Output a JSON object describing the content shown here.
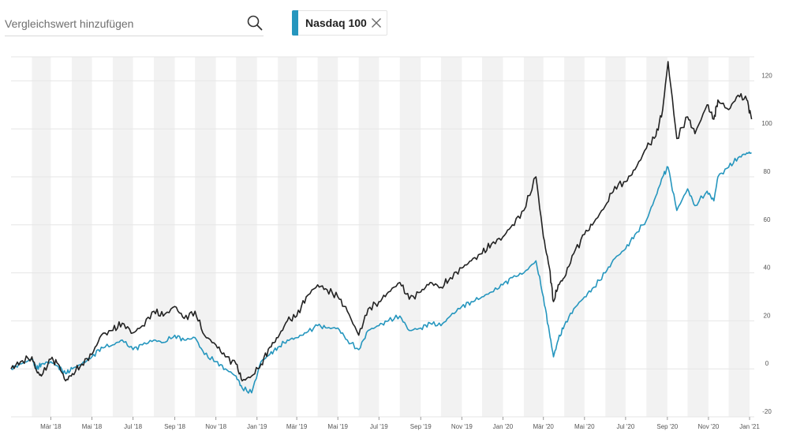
{
  "search": {
    "placeholder": "Vergleichswert hinzufügen",
    "icon": "search-icon"
  },
  "comparison_chip": {
    "label": "Nasdaq 100",
    "color": "#2596be",
    "close_icon": "close-icon"
  },
  "colors": {
    "main_series": "#222222",
    "comparison_series": "#2596be",
    "band": "#f2f2f2"
  },
  "chart_data": {
    "type": "line",
    "title": "",
    "xlabel": "",
    "ylabel": "",
    "ylim": [
      -20,
      130
    ],
    "yticks": [
      -20,
      0,
      20,
      40,
      60,
      80,
      100,
      120
    ],
    "xticks": [
      "Mär '18",
      "Mai '18",
      "Jul '18",
      "Sep '18",
      "Nov '18",
      "Jan '19",
      "Mär '19",
      "Mai '19",
      "Jul '19",
      "Sep '19",
      "Nov '19",
      "Jan '20",
      "Mär '20",
      "Mai '20",
      "Jul '20",
      "Sep '20",
      "Nov '20",
      "Jan '21"
    ],
    "grid": true,
    "alternating_month_bands": true,
    "x": [
      "2018-01-01",
      "2018-01-15",
      "2018-02-01",
      "2018-02-08",
      "2018-02-15",
      "2018-03-01",
      "2018-03-12",
      "2018-03-23",
      "2018-04-02",
      "2018-04-16",
      "2018-05-01",
      "2018-05-15",
      "2018-06-01",
      "2018-06-15",
      "2018-07-01",
      "2018-07-15",
      "2018-08-01",
      "2018-08-15",
      "2018-09-01",
      "2018-09-15",
      "2018-10-01",
      "2018-10-15",
      "2018-11-01",
      "2018-11-15",
      "2018-12-01",
      "2018-12-10",
      "2018-12-24",
      "2019-01-07",
      "2019-01-20",
      "2019-02-01",
      "2019-02-15",
      "2019-03-01",
      "2019-03-15",
      "2019-04-01",
      "2019-04-15",
      "2019-05-01",
      "2019-05-15",
      "2019-06-01",
      "2019-06-15",
      "2019-07-01",
      "2019-07-15",
      "2019-08-01",
      "2019-08-15",
      "2019-09-01",
      "2019-09-15",
      "2019-10-01",
      "2019-10-15",
      "2019-11-01",
      "2019-11-15",
      "2019-12-01",
      "2019-12-15",
      "2020-01-01",
      "2020-01-15",
      "2020-02-01",
      "2020-02-19",
      "2020-03-01",
      "2020-03-10",
      "2020-03-16",
      "2020-03-23",
      "2020-04-01",
      "2020-04-15",
      "2020-05-01",
      "2020-05-15",
      "2020-06-01",
      "2020-06-15",
      "2020-07-01",
      "2020-07-15",
      "2020-08-01",
      "2020-08-15",
      "2020-08-25",
      "2020-09-02",
      "2020-09-15",
      "2020-10-01",
      "2020-10-12",
      "2020-10-30",
      "2020-11-09",
      "2020-11-15",
      "2020-12-01",
      "2020-12-15",
      "2020-12-28",
      "2021-01-04"
    ],
    "series": [
      {
        "name": "",
        "values": [
          0,
          3,
          5,
          -1,
          -3,
          4,
          2,
          -5,
          -2,
          2,
          6,
          14,
          16,
          19,
          15,
          18,
          24,
          22,
          26,
          21,
          24,
          14,
          10,
          5,
          2,
          -5,
          -3,
          2,
          9,
          13,
          20,
          22,
          30,
          35,
          33,
          30,
          24,
          14,
          25,
          28,
          32,
          36,
          29,
          32,
          36,
          34,
          38,
          42,
          45,
          48,
          52,
          55,
          60,
          66,
          80,
          55,
          42,
          28,
          35,
          38,
          48,
          56,
          61,
          68,
          76,
          78,
          83,
          92,
          97,
          108,
          128,
          96,
          105,
          98,
          110,
          104,
          112,
          108,
          114,
          112,
          104
        ]
      },
      {
        "name": "",
        "values": [
          0,
          2,
          4,
          0,
          2,
          3,
          1,
          -2,
          0,
          2,
          5,
          9,
          10,
          12,
          8,
          10,
          12,
          11,
          14,
          12,
          13,
          6,
          3,
          0,
          -3,
          -8,
          -10,
          3,
          6,
          9,
          12,
          13,
          15,
          18,
          17,
          17,
          12,
          8,
          16,
          18,
          20,
          22,
          16,
          17,
          19,
          18,
          22,
          26,
          28,
          30,
          32,
          35,
          38,
          40,
          45,
          30,
          15,
          5,
          12,
          18,
          25,
          30,
          34,
          40,
          46,
          50,
          56,
          62,
          72,
          80,
          84,
          66,
          75,
          68,
          74,
          70,
          80,
          84,
          88,
          90,
          90
        ]
      }
    ]
  }
}
